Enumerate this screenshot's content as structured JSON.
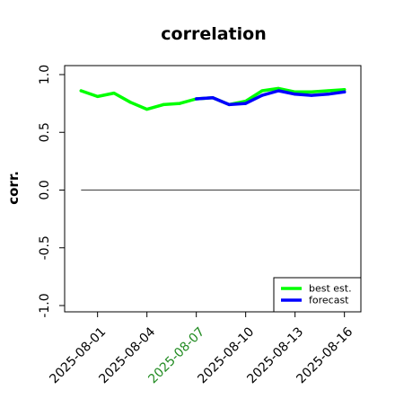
{
  "chart_data": {
    "type": "line",
    "title": "correlation",
    "xlabel": "",
    "ylabel": "corr.",
    "ylim": [
      -1.0,
      1.0
    ],
    "xlim": [
      "2025-07-30",
      "2025-08-17"
    ],
    "x_ticks": [
      "2025-08-01",
      "2025-08-04",
      "2025-08-07",
      "2025-08-10",
      "2025-08-13",
      "2025-08-16"
    ],
    "x_tick_labels": [
      "2025-08-01",
      "2025-08-04",
      "2025-08-07",
      "2025-08-10",
      "2025-08-13",
      "2025-08-16"
    ],
    "y_ticks": [
      1.0,
      0.5,
      0.0,
      -0.5,
      -1.0
    ],
    "y_tick_labels": [
      "1.0",
      "0.5",
      "0.0",
      "-0.5",
      "-1.0"
    ],
    "highlighted_tick": "2025-08-07",
    "highlight_color": "#228b22",
    "reference_line": 0.0,
    "grid": false,
    "legend_position": "lower-right",
    "series": [
      {
        "name": "best est.",
        "color": "#00ff00",
        "x": [
          "2025-07-31",
          "2025-08-01",
          "2025-08-02",
          "2025-08-03",
          "2025-08-04",
          "2025-08-05",
          "2025-08-06",
          "2025-08-07",
          "2025-08-08",
          "2025-08-09",
          "2025-08-10",
          "2025-08-11",
          "2025-08-12",
          "2025-08-13",
          "2025-08-14",
          "2025-08-15",
          "2025-08-16"
        ],
        "values": [
          0.86,
          0.81,
          0.84,
          0.76,
          0.7,
          0.74,
          0.75,
          0.79,
          0.8,
          0.74,
          0.77,
          0.86,
          0.88,
          0.85,
          0.85,
          0.86,
          0.87
        ]
      },
      {
        "name": "forecast",
        "color": "#0000ff",
        "x": [
          "2025-08-07",
          "2025-08-08",
          "2025-08-09",
          "2025-08-10",
          "2025-08-11",
          "2025-08-12",
          "2025-08-13",
          "2025-08-14",
          "2025-08-15",
          "2025-08-16"
        ],
        "values": [
          0.79,
          0.8,
          0.74,
          0.75,
          0.82,
          0.86,
          0.83,
          0.82,
          0.83,
          0.85
        ]
      }
    ]
  }
}
